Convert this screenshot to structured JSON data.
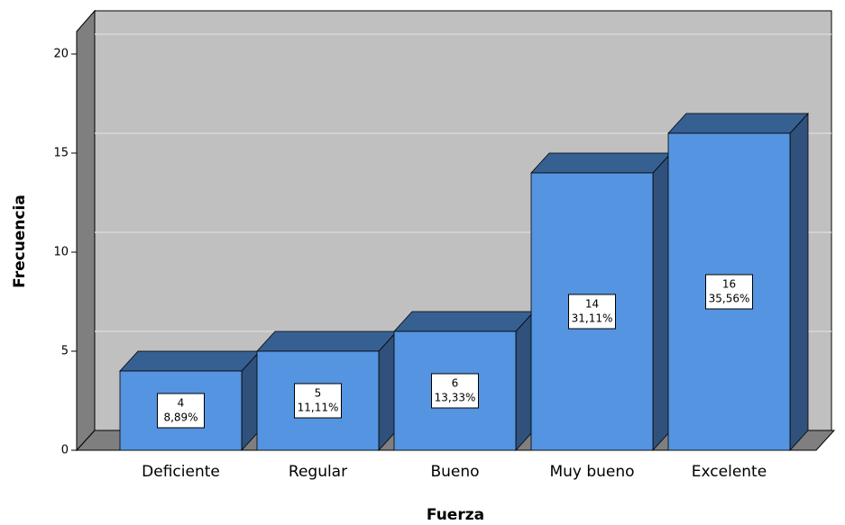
{
  "chart_data": {
    "type": "bar3d",
    "x_label": "Fuerza",
    "y_label": "Frecuencia",
    "categories": [
      "Deficiente",
      "Regular",
      "Bueno",
      "Muy bueno",
      "Excelente"
    ],
    "values": [
      4,
      5,
      6,
      14,
      16
    ],
    "percentage_labels": [
      "8,89%",
      "11,11%",
      "13,33%",
      "31,11%",
      "35,56%"
    ],
    "color": "#5594e0",
    "ylim": [
      0,
      21
    ],
    "yticks": [
      0,
      5,
      10,
      15,
      20
    ],
    "grid": true
  }
}
